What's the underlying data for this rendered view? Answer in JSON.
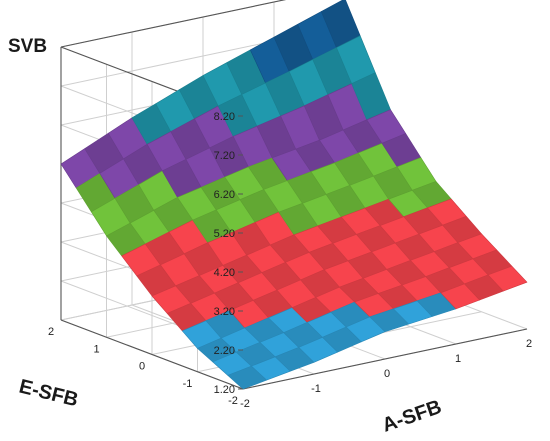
{
  "chart_data": {
    "type": "surface",
    "title": "",
    "zlabel": "SVB",
    "xlabel": "A-SFB",
    "ylabel": "E-SFB",
    "x_ticks": [
      "-2",
      "-1",
      "0",
      "1",
      "2"
    ],
    "y_ticks": [
      "-2",
      "-1",
      "0",
      "1",
      "2"
    ],
    "z_ticks": [
      "1.20",
      "2.20",
      "3.20",
      "4.20",
      "5.20",
      "6.20",
      "7.20",
      "8.20"
    ],
    "xlim": [
      -2,
      2
    ],
    "ylim": [
      -2,
      2
    ],
    "zlim": [
      1.2,
      8.2
    ],
    "grid": true,
    "x": [
      -2,
      -1,
      0,
      1,
      2
    ],
    "y": [
      -2,
      -1,
      0,
      1,
      2
    ],
    "z": [
      [
        1.2,
        1.5,
        1.9,
        2.1,
        2.4
      ],
      [
        1.8,
        2.2,
        2.6,
        2.9,
        3.2
      ],
      [
        2.7,
        3.1,
        3.5,
        3.8,
        4.1
      ],
      [
        3.8,
        4.4,
        4.8,
        5.1,
        5.5
      ],
      [
        5.2,
        6.0,
        6.7,
        7.3,
        7.9
      ]
    ],
    "color_bands": [
      {
        "from": 1.2,
        "to": 2.2,
        "color": "#2f9fd6"
      },
      {
        "from": 2.2,
        "to": 3.7,
        "color": "#f2434b"
      },
      {
        "from": 3.7,
        "to": 4.7,
        "color": "#6fbf3a"
      },
      {
        "from": 4.7,
        "to": 5.7,
        "color": "#7c46a6"
      },
      {
        "from": 5.7,
        "to": 6.7,
        "color": "#1f96aa"
      },
      {
        "from": 6.7,
        "to": 8.2,
        "color": "#145c96"
      }
    ]
  }
}
